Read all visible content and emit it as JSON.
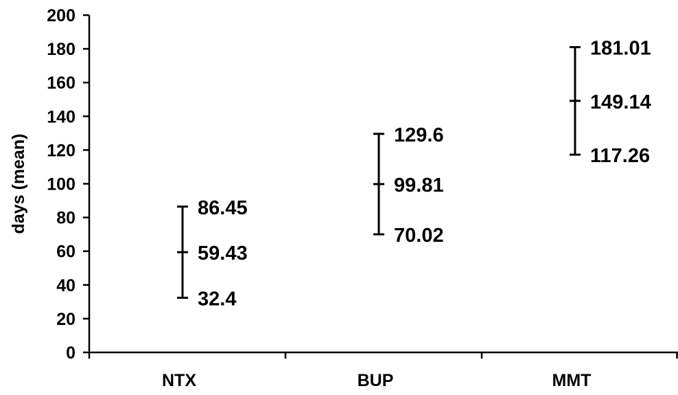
{
  "chart_data": {
    "type": "scatter",
    "subtype": "range-error-bars",
    "title": "",
    "xlabel": "",
    "ylabel": "days (mean)",
    "ylim": [
      0,
      200
    ],
    "yticks": [
      0,
      20,
      40,
      60,
      80,
      100,
      120,
      140,
      160,
      180,
      200
    ],
    "grid": false,
    "legend": "none",
    "categories": [
      "NTX",
      "BUP",
      "MMT"
    ],
    "series": [
      {
        "low": [
          32.4,
          70.02,
          117.26
        ],
        "mean": [
          59.43,
          99.81,
          149.14
        ],
        "high": [
          86.45,
          129.6,
          181.01
        ]
      }
    ],
    "data_labels": [
      {
        "category": "NTX",
        "high": "86.45",
        "mean": "59.43",
        "low": "32.4"
      },
      {
        "category": "BUP",
        "high": "129.6",
        "mean": "99.81",
        "low": "70.02"
      },
      {
        "category": "MMT",
        "high": "181.01",
        "mean": "149.14",
        "low": "117.26"
      }
    ],
    "colors": {
      "line": "#000000",
      "background": "#ffffff"
    }
  }
}
